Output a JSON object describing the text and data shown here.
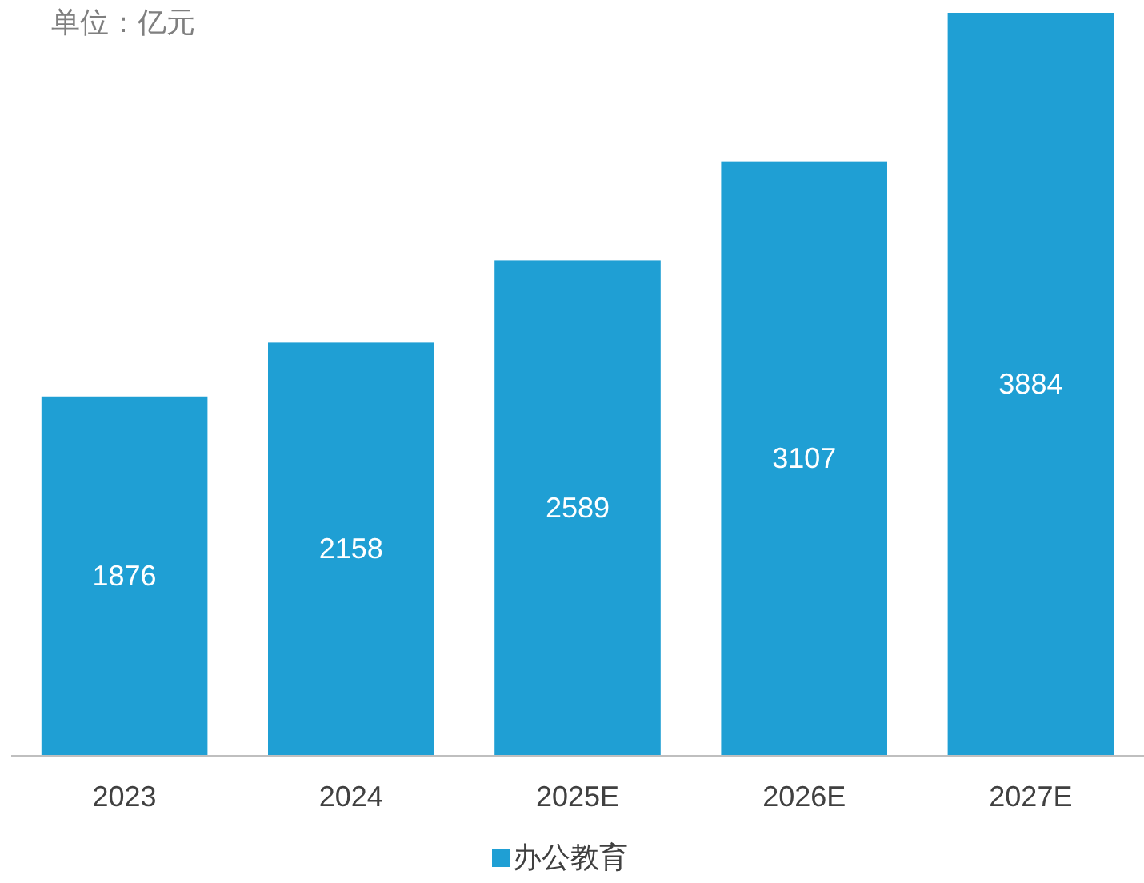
{
  "chart_data": {
    "type": "bar",
    "ylabel": "单位：亿元",
    "categories": [
      "2023",
      "2024",
      "2025E",
      "2026E",
      "2027E"
    ],
    "series": [
      {
        "name": "办公教育",
        "color": "#1f9fd4",
        "values": [
          1876,
          2158,
          2589,
          3107,
          3884
        ]
      }
    ],
    "data_labels": true,
    "legend": "bottom"
  }
}
